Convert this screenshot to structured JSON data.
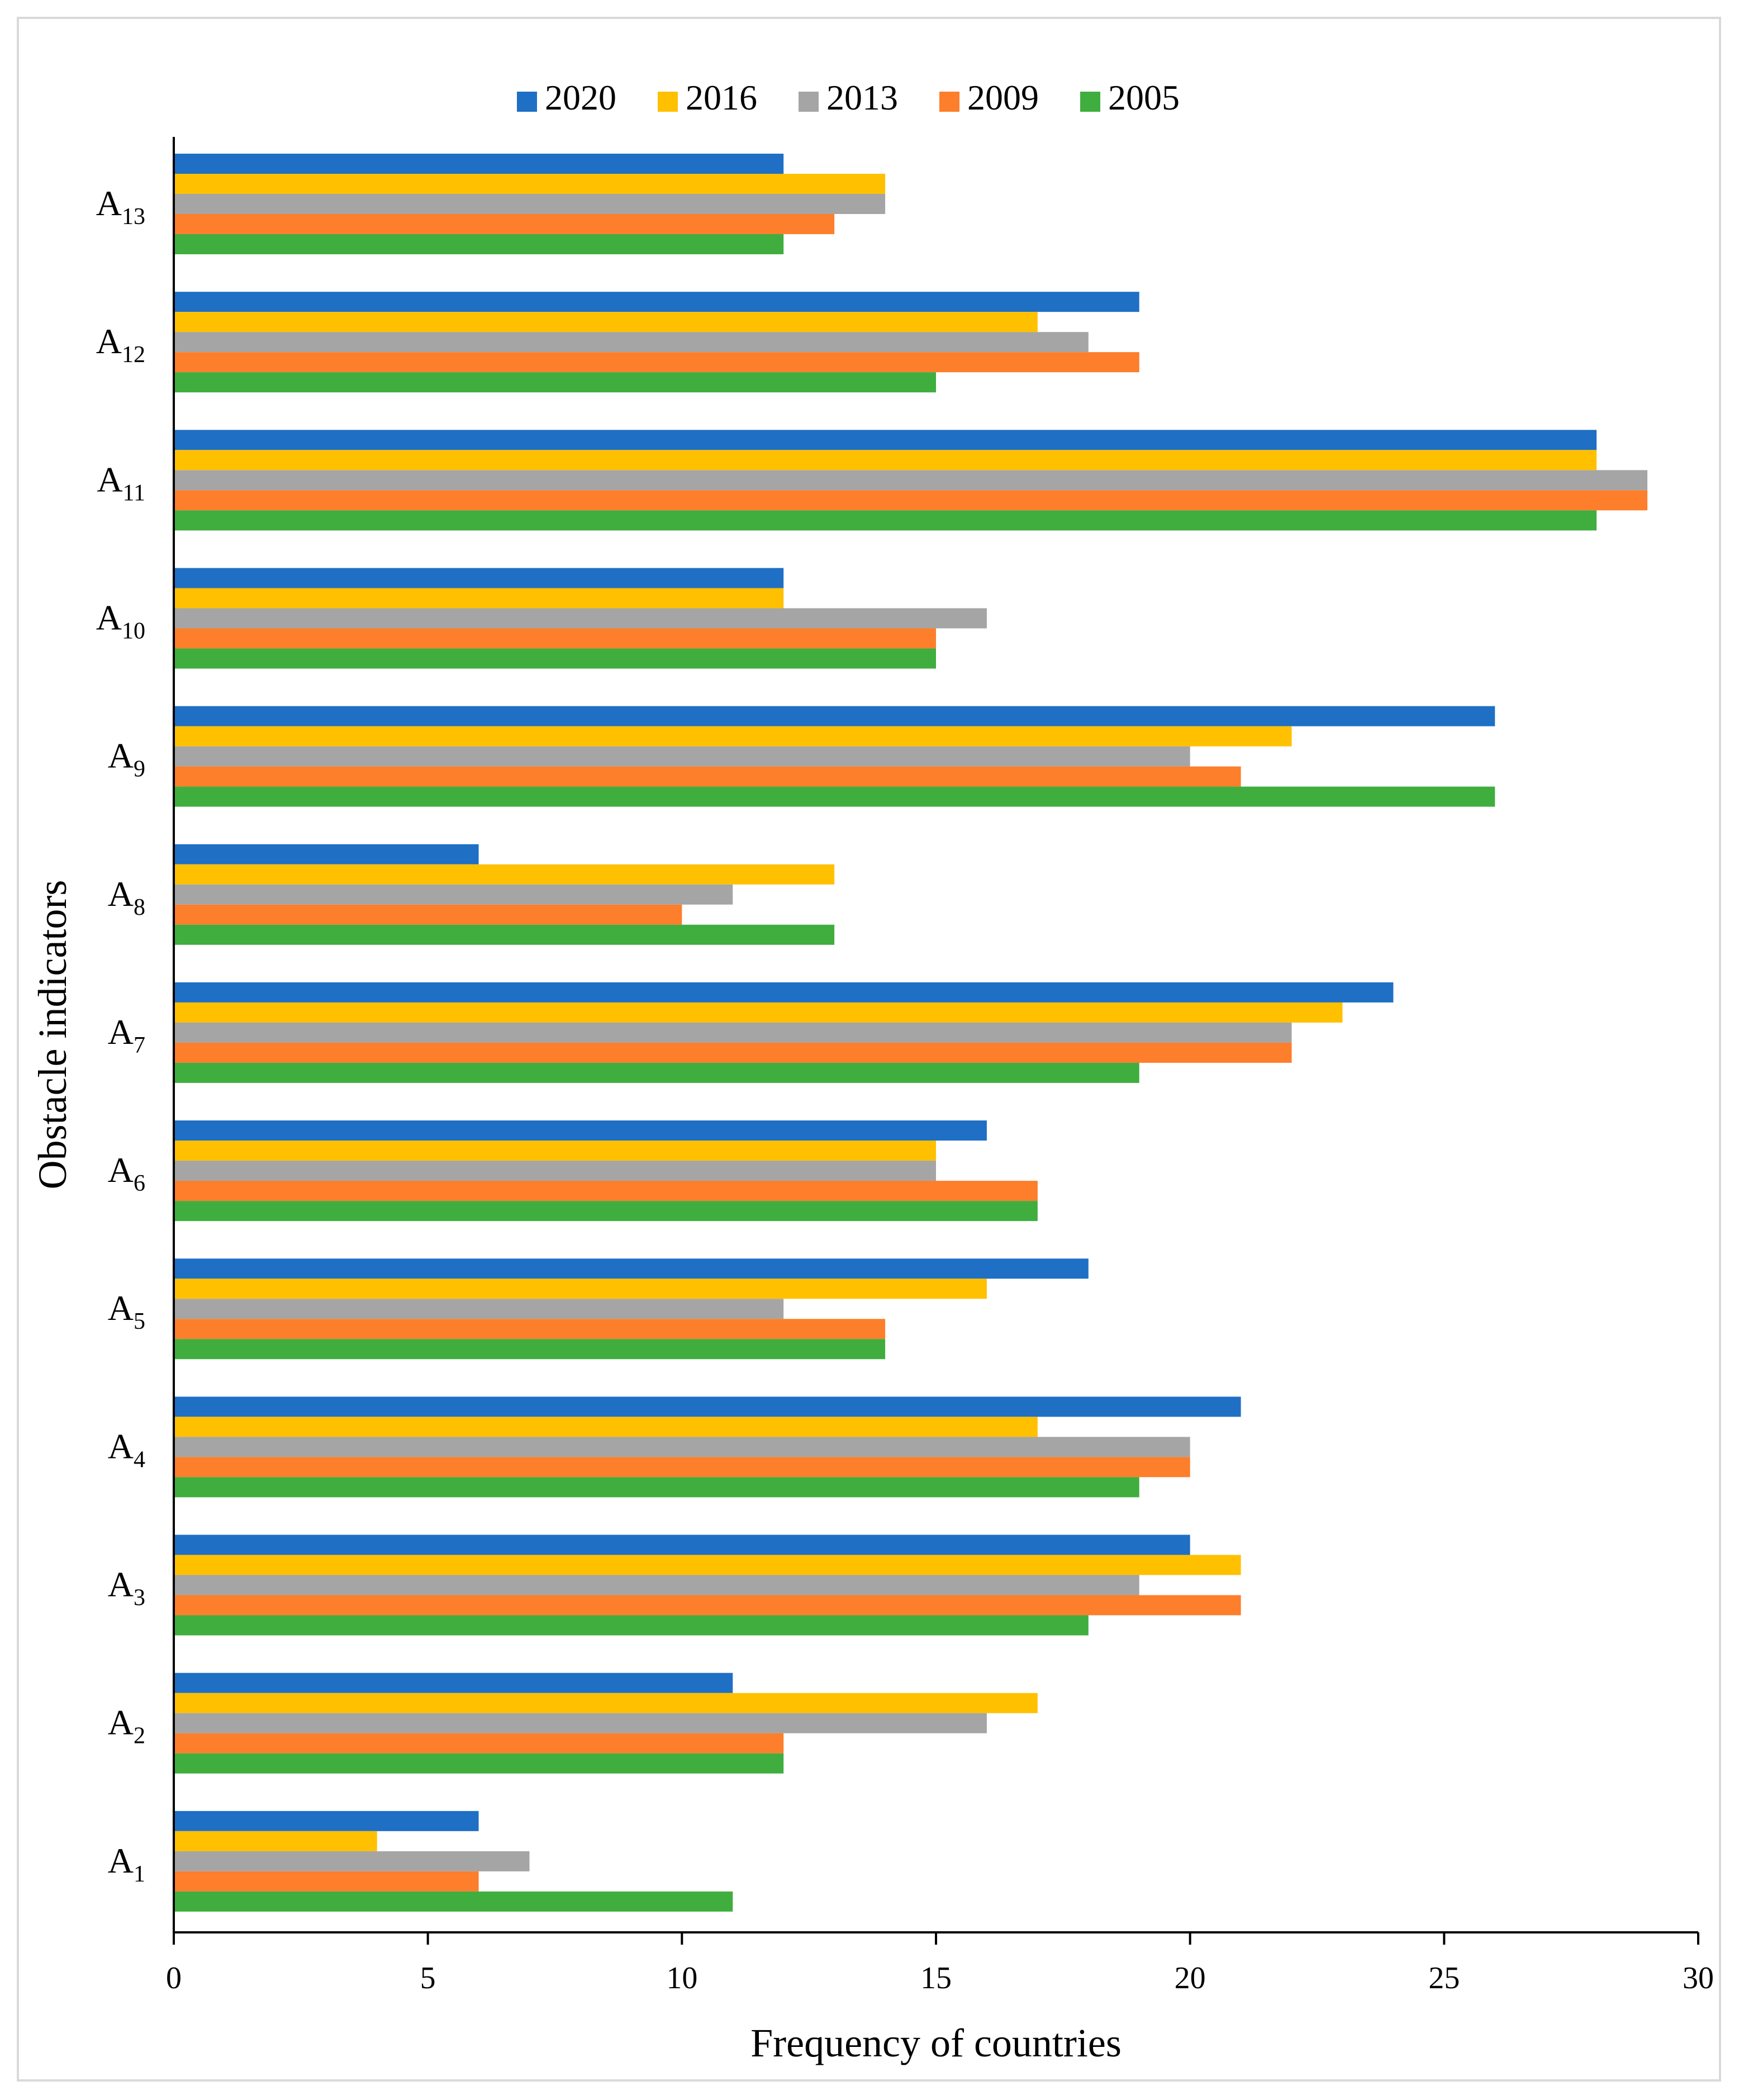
{
  "chart_data": {
    "type": "bar",
    "orientation": "horizontal",
    "title": "",
    "xlabel": "Frequency of countries",
    "ylabel": "Obstacle indicators",
    "xlim": [
      0,
      30
    ],
    "xticks": [
      "0",
      "5",
      "10",
      "15",
      "20",
      "25",
      "30"
    ],
    "categories": [
      "A13",
      "A12",
      "A11",
      "A10",
      "A9",
      "A8",
      "A7",
      "A6",
      "A5",
      "A4",
      "A3",
      "A2",
      "A1"
    ],
    "category_labels": [
      {
        "base": "A",
        "sub": "13"
      },
      {
        "base": "A",
        "sub": "12"
      },
      {
        "base": "A",
        "sub": "11"
      },
      {
        "base": "A",
        "sub": "10"
      },
      {
        "base": "A",
        "sub": "9"
      },
      {
        "base": "A",
        "sub": "8"
      },
      {
        "base": "A",
        "sub": "7"
      },
      {
        "base": "A",
        "sub": "6"
      },
      {
        "base": "A",
        "sub": "5"
      },
      {
        "base": "A",
        "sub": "4"
      },
      {
        "base": "A",
        "sub": "3"
      },
      {
        "base": "A",
        "sub": "2"
      },
      {
        "base": "A",
        "sub": "1"
      }
    ],
    "legend_position": "top-center",
    "grid": false,
    "series": [
      {
        "name": "2020",
        "color": "#1f6fc5",
        "values": [
          12,
          19,
          28,
          12,
          26,
          6,
          24,
          16,
          18,
          21,
          20,
          11,
          6
        ]
      },
      {
        "name": "2016",
        "color": "#ffc000",
        "values": [
          14,
          17,
          28,
          12,
          22,
          13,
          23,
          15,
          16,
          17,
          21,
          17,
          4
        ]
      },
      {
        "name": "2013",
        "color": "#a5a5a5",
        "values": [
          14,
          18,
          29,
          16,
          20,
          11,
          22,
          15,
          12,
          20,
          19,
          16,
          7
        ]
      },
      {
        "name": "2009",
        "color": "#fd7e2b",
        "values": [
          13,
          19,
          29,
          15,
          21,
          10,
          22,
          17,
          14,
          20,
          21,
          12,
          6
        ]
      },
      {
        "name": "2005",
        "color": "#3fae3f",
        "values": [
          12,
          15,
          28,
          15,
          26,
          13,
          19,
          17,
          14,
          19,
          18,
          12,
          11
        ]
      }
    ]
  }
}
